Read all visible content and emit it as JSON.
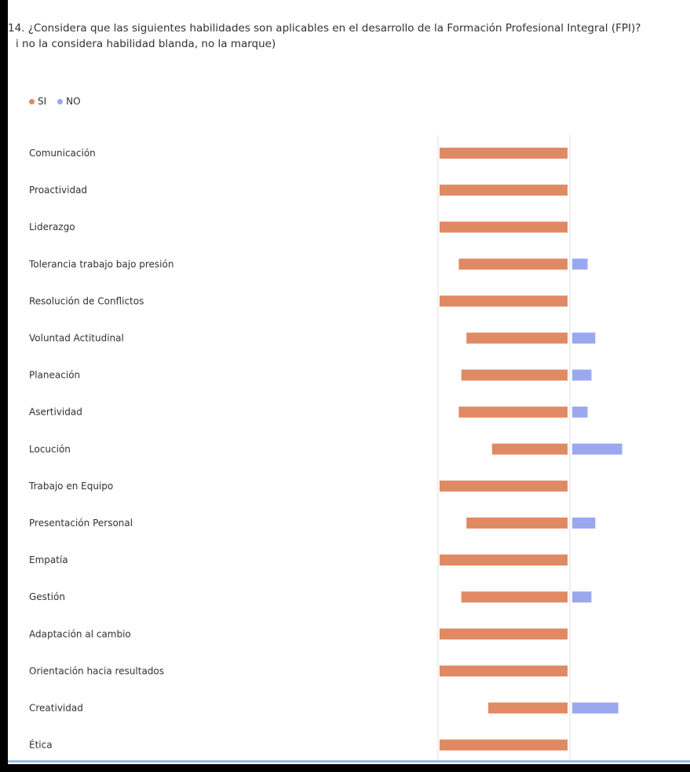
{
  "question": {
    "line1": "14. ¿Considera que las siguientes habilidades son aplicables en el desarrollo de la Formación Profesional Integral (FPI)?",
    "line2": "i no la considera habilidad blanda, no la marque)"
  },
  "legend": {
    "si_label": "SI",
    "no_label": "NO"
  },
  "colors": {
    "si": "#e08a63",
    "no": "#9aa8f0",
    "axis": "#e1dfdd"
  },
  "chart_data": {
    "type": "bar",
    "orientation": "horizontal-diverging",
    "categories": [
      "Comunicación",
      "Proactividad",
      "Liderazgo",
      "Tolerancia trabajo bajo presión",
      "Resolución de Conflictos",
      "Voluntad Actitudinal",
      "Planeación",
      "Asertividad",
      "Locución",
      "Trabajo en Equipo",
      "Presentación Personal",
      "Empatía",
      "Gestión",
      "Adaptación al cambio",
      "Orientación hacia resultados",
      "Creatividad",
      "Ética"
    ],
    "series": [
      {
        "name": "SI",
        "values": [
          100,
          100,
          100,
          85,
          100,
          79,
          83,
          85,
          59,
          100,
          79,
          100,
          83,
          100,
          100,
          62,
          100
        ]
      },
      {
        "name": "NO",
        "values": [
          0,
          0,
          0,
          12,
          0,
          18,
          15,
          12,
          39,
          0,
          18,
          0,
          15,
          0,
          0,
          36,
          0
        ]
      }
    ],
    "xlim": [
      -100,
      100
    ],
    "legend_position": "top-left",
    "grid": false
  }
}
